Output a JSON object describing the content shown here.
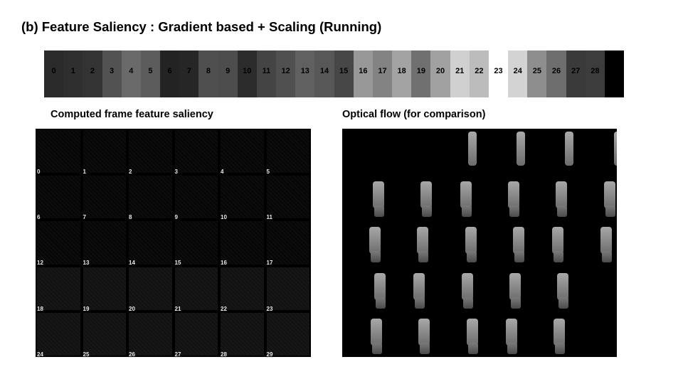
{
  "title": "(b)  Feature Saliency : Gradient based + Scaling (Running)",
  "strip": {
    "numbers": [
      "0",
      "1",
      "2",
      "3",
      "4",
      "5",
      "6",
      "7",
      "8",
      "9",
      "10",
      "11",
      "12",
      "13",
      "14",
      "15",
      "16",
      "17",
      "18",
      "19",
      "20",
      "21",
      "22",
      "23",
      "24",
      "25",
      "26",
      "27",
      "28",
      ""
    ],
    "shades": [
      "#2a2a2a",
      "#2f2f2f",
      "#333333",
      "#525252",
      "#6a6a6a",
      "#5c5c5c",
      "#232323",
      "#262626",
      "#4f4f4f",
      "#4d4d4d",
      "#2c2c2c",
      "#444444",
      "#505050",
      "#606060",
      "#575757",
      "#474747",
      "#989898",
      "#838383",
      "#a3a3a3",
      "#707070",
      "#a1a1a1",
      "#d0d0d0",
      "#bcbcbc",
      "#ffffff",
      "#d3d3d3",
      "#8e8e8e",
      "#6e6e6e",
      "#3a3a3a",
      "#3c3c3c",
      "#000000"
    ]
  },
  "left_heading": "Computed frame feature saliency",
  "right_heading": "Optical flow (for comparison)",
  "saliency": {
    "labels": [
      "0",
      "1",
      "2",
      "3",
      "4",
      "5",
      "6",
      "7",
      "8",
      "9",
      "10",
      "11",
      "12",
      "13",
      "14",
      "15",
      "16",
      "17",
      "18",
      "19",
      "20",
      "21",
      "22",
      "23",
      "24",
      "25",
      "26",
      "27",
      "28",
      "29"
    ]
  }
}
